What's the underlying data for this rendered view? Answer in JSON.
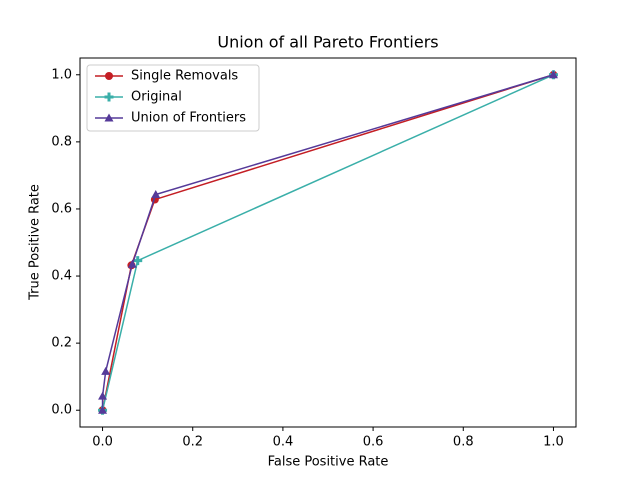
{
  "chart_data": {
    "type": "line",
    "title": "Union of all Pareto Frontiers",
    "x_label": "False Positive Rate",
    "y_label": "True Positive Rate",
    "xlim": [
      -0.05,
      1.05
    ],
    "ylim": [
      -0.05,
      1.05
    ],
    "xticks": [
      {
        "value": 0,
        "label": "0.0"
      },
      {
        "value": 0.2,
        "label": "0.2"
      },
      {
        "value": 0.4,
        "label": "0.4"
      },
      {
        "value": 0.6,
        "label": "0.6"
      },
      {
        "value": 0.8,
        "label": "0.8"
      },
      {
        "value": 1,
        "label": "1.0"
      }
    ],
    "yticks": [
      {
        "value": 0,
        "label": "0.0"
      },
      {
        "value": 0.2,
        "label": "0.2"
      },
      {
        "value": 0.4,
        "label": "0.4"
      },
      {
        "value": 0.6,
        "label": "0.6"
      },
      {
        "value": 0.8,
        "label": "0.8"
      },
      {
        "value": 1,
        "label": "1.0"
      }
    ],
    "legend": "upper left",
    "series": [
      {
        "name": "Single Removals",
        "color": "#c41e24",
        "marker": "circle",
        "x": [
          0,
          0.064,
          0.116,
          1
        ],
        "values": [
          0,
          0.432,
          0.628,
          1
        ]
      },
      {
        "name": "Original",
        "color": "#3aafa9",
        "marker": "plus",
        "x": [
          0,
          0.078,
          1
        ],
        "values": [
          0,
          0.446,
          1
        ]
      },
      {
        "name": "Union of Frontiers",
        "color": "#553a99",
        "marker": "triangle",
        "x": [
          0,
          0,
          0.007,
          0.066,
          0.118,
          1
        ],
        "values": [
          0,
          0.042,
          0.116,
          0.435,
          0.643,
          1
        ]
      }
    ]
  }
}
